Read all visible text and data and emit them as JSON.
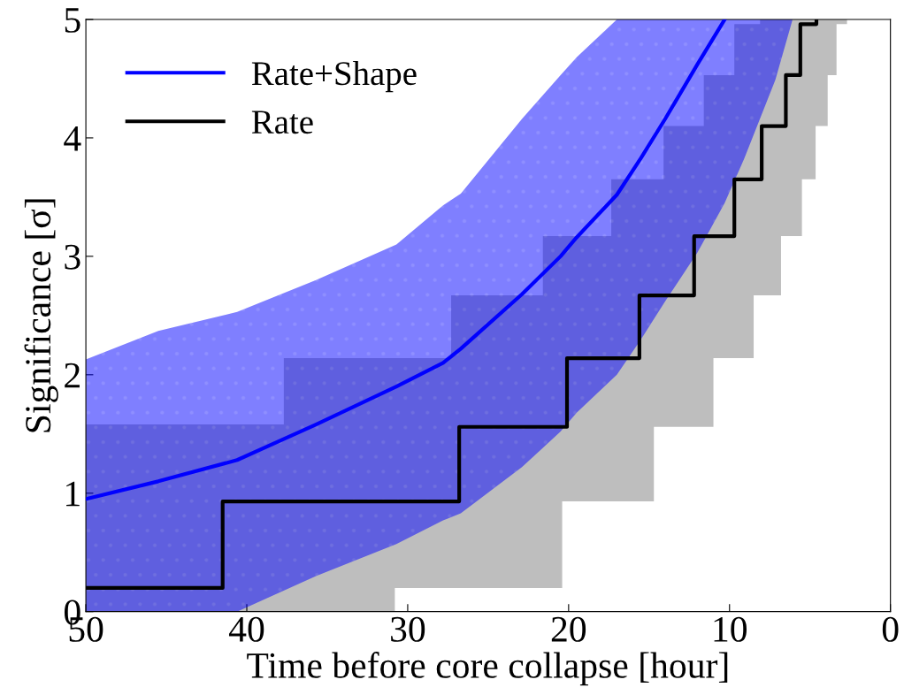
{
  "chart_data": {
    "type": "line",
    "xlabel": "Time before core collapse [hour]",
    "ylabel": "Significance [σ]",
    "xlim": [
      50,
      0
    ],
    "ylim": [
      0,
      5
    ],
    "xticks": [
      50,
      40,
      30,
      20,
      10,
      0
    ],
    "yticks": [
      0,
      1,
      2,
      3,
      4,
      5
    ],
    "grid": false,
    "legend": "top left",
    "series": [
      {
        "name": "Rate+Shape",
        "color": "#0000ff",
        "x": [
          50,
          45.5,
          40.6,
          35.7,
          30.7,
          27.8,
          26.7,
          22.9,
          20.5,
          19.5,
          17.0,
          15.5,
          14.0,
          12.0,
          10.3,
          9.1,
          7.15,
          6.1
        ],
        "values": [
          0.95,
          1.1,
          1.28,
          1.58,
          1.9,
          2.1,
          2.22,
          2.68,
          3.0,
          3.16,
          3.52,
          3.83,
          4.16,
          4.62,
          5.0,
          null,
          null,
          null
        ],
        "lower": [
          0,
          0,
          0,
          0.3,
          0.57,
          0.77,
          0.83,
          1.22,
          1.52,
          1.68,
          2.0,
          2.3,
          2.62,
          3.03,
          3.45,
          3.82,
          4.49,
          4.99
        ],
        "upper": [
          2.13,
          2.37,
          2.53,
          2.8,
          3.1,
          3.43,
          3.53,
          4.16,
          4.53,
          4.68,
          5,
          5,
          5,
          5,
          5,
          5,
          5,
          5
        ]
      },
      {
        "type": "step",
        "name": "Rate",
        "color": "#000000",
        "x": [
          50,
          41.5,
          37.7,
          30.8,
          27.3,
          26.8,
          21.6,
          20.4,
          20.1,
          17.35,
          15.6,
          14.7,
          14.1,
          12.2,
          11.6,
          11.0,
          9.7,
          8.5,
          8.1,
          8.0,
          6.8,
          6.5,
          5.6,
          5.5,
          4.65,
          4.6,
          3.9,
          3.35,
          2.7
        ],
        "values": [
          0.2,
          0.93,
          0.93,
          0.93,
          0.93,
          1.56,
          1.56,
          1.56,
          2.14,
          2.14,
          2.67,
          2.67,
          2.67,
          3.17,
          3.17,
          3.17,
          3.65,
          3.65,
          3.65,
          4.1,
          4.1,
          4.53,
          4.96,
          4.96,
          4.96,
          5.0,
          null,
          null,
          null
        ],
        "lower": [
          0,
          0,
          0,
          0.2,
          0.2,
          0.2,
          0.2,
          0.93,
          0.93,
          0.93,
          0.93,
          1.56,
          1.56,
          1.56,
          1.56,
          2.14,
          2.14,
          2.67,
          2.67,
          2.67,
          3.17,
          3.17,
          3.17,
          3.65,
          4.1,
          4.1,
          4.53,
          4.96,
          4.96
        ],
        "upper": [
          1.58,
          1.58,
          2.14,
          2.14,
          2.67,
          2.67,
          3.17,
          3.17,
          3.17,
          3.65,
          3.65,
          3.65,
          4.1,
          4.1,
          4.53,
          4.53,
          4.96,
          4.96,
          5,
          5,
          5,
          5,
          5,
          5,
          5,
          5,
          5,
          5,
          5
        ]
      }
    ]
  }
}
